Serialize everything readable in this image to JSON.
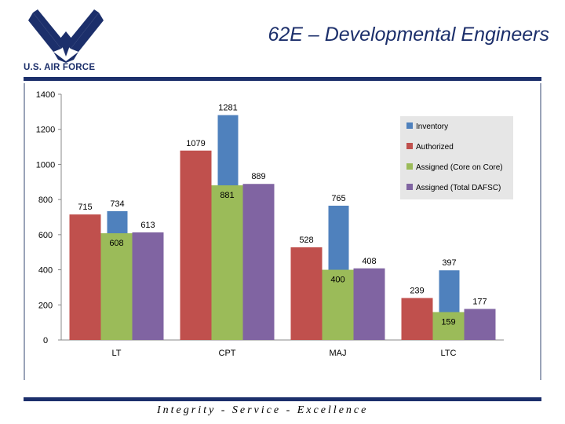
{
  "header": {
    "title": "62E – Developmental Engineers",
    "logo_text": "U.S. AIR FORCE"
  },
  "footer": {
    "motto": "Integrity - Service - Excellence"
  },
  "colors": {
    "brand_navy": "#1c2f6b",
    "inventory": "#4f81bd",
    "authorized": "#c0504d",
    "assigned_core": "#9bbb59",
    "assigned_total": "#8064a2",
    "legend_bg": "#e6e6e6"
  },
  "icons": {
    "logo": "air-force-wings-icon"
  },
  "chart_data": {
    "type": "bar",
    "categories": [
      "LT",
      "CPT",
      "MAJ",
      "LTC"
    ],
    "ylim": [
      0,
      1400
    ],
    "yticks": [
      0,
      200,
      400,
      600,
      800,
      1000,
      1200,
      1400
    ],
    "grid": false,
    "legend_position": "top-right",
    "series": [
      {
        "name": "Inventory",
        "color": "#4f81bd",
        "values": [
          734,
          1281,
          765,
          397
        ]
      },
      {
        "name": "Authorized",
        "color": "#c0504d",
        "values": [
          715,
          1079,
          528,
          239
        ]
      },
      {
        "name": "Assigned (Core on Core)",
        "color": "#9bbb59",
        "values": [
          608,
          881,
          400,
          159
        ]
      },
      {
        "name": "Assigned (Total DAFSC)",
        "color": "#8064a2",
        "values": [
          613,
          889,
          408,
          177
        ]
      }
    ]
  }
}
